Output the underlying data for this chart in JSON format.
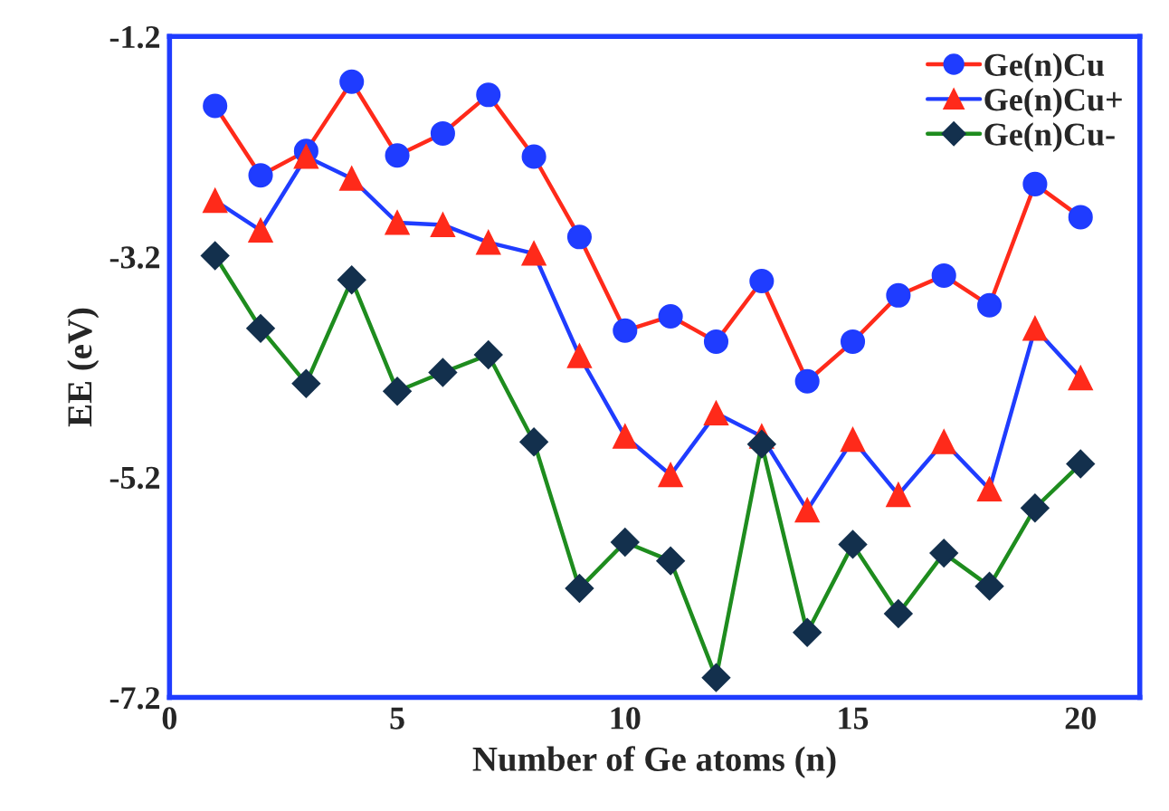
{
  "chart_data": {
    "type": "line",
    "xlabel": "Number of Ge atoms (n)",
    "ylabel": "EE (eV)",
    "x": [
      1,
      2,
      3,
      4,
      5,
      6,
      7,
      8,
      9,
      10,
      11,
      12,
      13,
      14,
      15,
      16,
      17,
      18,
      19,
      20
    ],
    "series": [
      {
        "name": "Ge(n)Cu",
        "color": "#1f3cff",
        "marker": "circle",
        "values": [
          -1.83,
          -2.46,
          -2.24,
          -1.61,
          -2.28,
          -2.08,
          -1.73,
          -2.29,
          -3.02,
          -3.87,
          -3.74,
          -3.97,
          -3.42,
          -4.33,
          -3.97,
          -3.55,
          -3.37,
          -3.64,
          -2.54,
          -2.84
        ]
      },
      {
        "name": "Ge(n)Cu+",
        "color": "#ff2a1a",
        "marker": "triangle",
        "values": [
          -2.69,
          -2.96,
          -2.29,
          -2.49,
          -2.89,
          -2.91,
          -3.07,
          -3.17,
          -4.1,
          -4.83,
          -5.18,
          -4.62,
          -4.83,
          -5.5,
          -4.86,
          -5.36,
          -4.88,
          -5.31,
          -3.85,
          -4.3
        ]
      },
      {
        "name": "Ge(n)Cu-",
        "color": "#13304d",
        "marker": "diamond",
        "values": [
          -3.19,
          -3.85,
          -4.35,
          -3.41,
          -4.42,
          -4.25,
          -4.09,
          -4.88,
          -6.21,
          -5.79,
          -5.96,
          -7.02,
          -4.9,
          -6.61,
          -5.81,
          -6.44,
          -5.89,
          -6.19,
          -5.48,
          -5.08
        ]
      }
    ],
    "xlim": [
      0,
      21.3
    ],
    "xticks": [
      0,
      5,
      10,
      15,
      20
    ],
    "ylim": [
      -7.2,
      -1.2
    ],
    "yticks": [
      -7.2,
      -5.2,
      -3.2,
      -1.2
    ],
    "grid": false,
    "legend": "top right",
    "line_style": "solid"
  }
}
